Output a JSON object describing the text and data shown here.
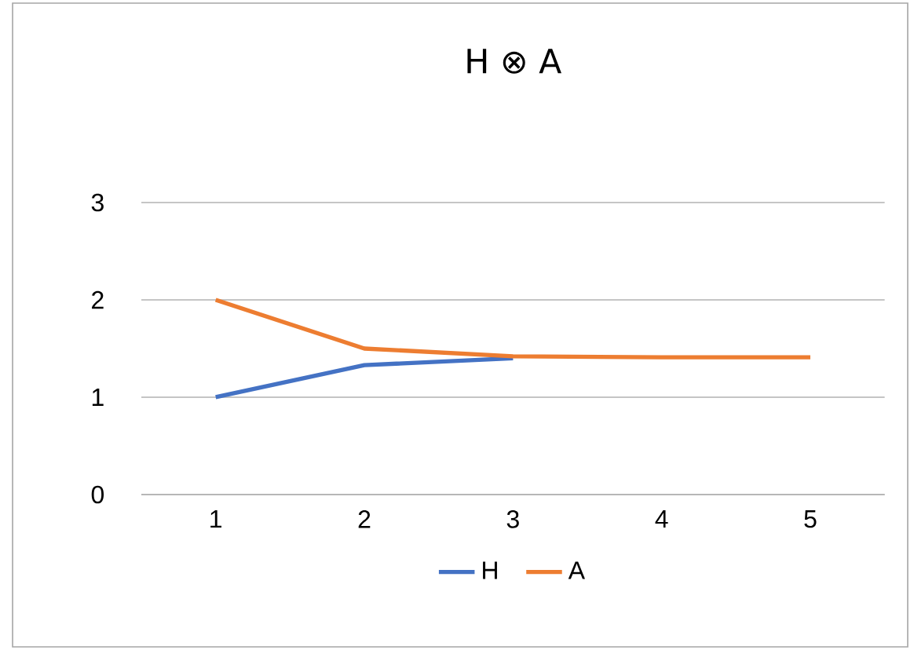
{
  "chart_data": {
    "type": "line",
    "title": "H ⊗ A",
    "categories": [
      "1",
      "2",
      "3",
      "4",
      "5"
    ],
    "series": [
      {
        "name": "H",
        "color": "#4472c4",
        "values": [
          1,
          1.33,
          1.4,
          null,
          null
        ]
      },
      {
        "name": "A",
        "color": "#ed7d31",
        "values": [
          2,
          1.5,
          1.42,
          1.41,
          1.41
        ]
      }
    ],
    "ylim": [
      0,
      3
    ],
    "yticks": [
      0,
      1,
      2,
      3
    ],
    "grid": "y",
    "legend": "bottom",
    "marker": "none",
    "line_style": "solid"
  }
}
